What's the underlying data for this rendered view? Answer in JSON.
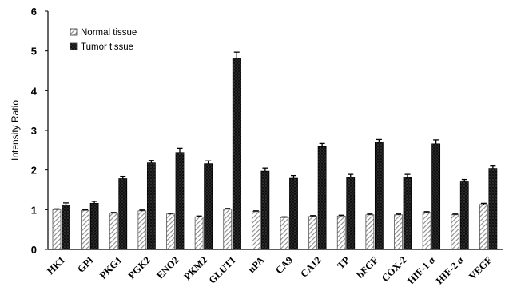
{
  "chart_data": {
    "type": "bar",
    "ylabel": "Intensity Ratio",
    "xlabel": "",
    "ylim": [
      0,
      6
    ],
    "yticks": [
      "0",
      "1",
      "2",
      "3",
      "4",
      "5",
      "6"
    ],
    "categories": [
      "HK1",
      "GPI",
      "PKG1",
      "PGK2",
      "ENO2",
      "PKM2",
      "GLUT1",
      "uPA",
      "CA9",
      "CA12",
      "TP",
      "bFGF",
      "COX-2",
      "HIF-1 α",
      "HIF-2 α",
      "VEGF"
    ],
    "series": [
      {
        "name": "Normal tissue",
        "pattern": "diagonal-hatch",
        "color": "#bdbdbd",
        "values": [
          1.0,
          0.98,
          0.91,
          0.97,
          0.89,
          0.82,
          1.01,
          0.95,
          0.8,
          0.83,
          0.84,
          0.87,
          0.87,
          0.93,
          0.87,
          1.13
        ],
        "errors": [
          0.02,
          0.02,
          0.02,
          0.02,
          0.02,
          0.02,
          0.02,
          0.02,
          0.02,
          0.02,
          0.02,
          0.02,
          0.02,
          0.02,
          0.02,
          0.03
        ]
      },
      {
        "name": "Tumor tissue",
        "pattern": "dotted-dark",
        "color": "#1a1a1a",
        "values": [
          1.12,
          1.16,
          1.78,
          2.18,
          2.44,
          2.16,
          4.82,
          1.97,
          1.79,
          2.59,
          1.81,
          2.7,
          1.81,
          2.66,
          1.7,
          2.04
        ],
        "errors": [
          0.05,
          0.05,
          0.06,
          0.06,
          0.11,
          0.07,
          0.15,
          0.08,
          0.07,
          0.08,
          0.08,
          0.07,
          0.08,
          0.1,
          0.06,
          0.06
        ]
      }
    ],
    "legend_position": "top-left",
    "grid": false
  }
}
